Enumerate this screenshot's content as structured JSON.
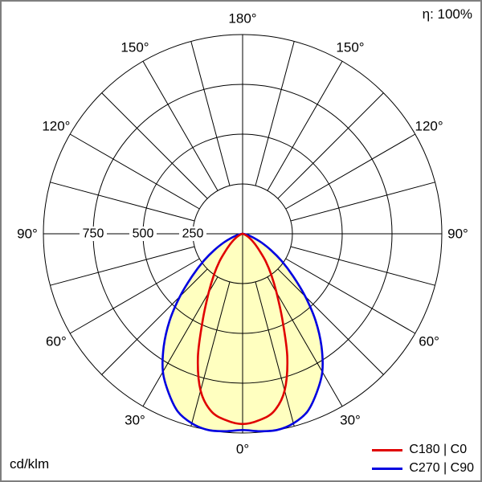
{
  "meta": {
    "efficiency": "η: 100%",
    "unit": "cd/klm"
  },
  "legend": [
    {
      "label": "C180 | C0",
      "color": "#e00000"
    },
    {
      "label": "C270 | C90",
      "color": "#0000e0"
    }
  ],
  "chart_data": {
    "type": "polar",
    "description": "Luminous intensity distribution polar diagram, values in cd/klm",
    "efficiency": "η: 100%",
    "unit": "cd/klm",
    "r_max": 1000,
    "radial_ticks": [
      250,
      500,
      750
    ],
    "grid_step_deg": 15,
    "angle_label_step_deg": 30,
    "grid_color": "#000000",
    "fill_color": "#ffffc0",
    "center": {
      "x": 300,
      "y": 289
    },
    "radius_px": 248,
    "label_radius_px": 268,
    "angle_labels": [
      {
        "deg": 0,
        "text": "0°"
      },
      {
        "deg": 30,
        "text": "30°"
      },
      {
        "deg": 60,
        "text": "60°"
      },
      {
        "deg": 90,
        "text": "90°"
      },
      {
        "deg": 120,
        "text": "120°"
      },
      {
        "deg": 150,
        "text": "150°"
      },
      {
        "deg": 180,
        "text": "180°"
      }
    ],
    "series": [
      {
        "name": "C180 | C0",
        "plane": "C0",
        "color": "#e00000",
        "points": [
          [
            0,
            955
          ],
          [
            5,
            940
          ],
          [
            10,
            905
          ],
          [
            15,
            815
          ],
          [
            20,
            655
          ],
          [
            25,
            470
          ],
          [
            30,
            340
          ],
          [
            35,
            250
          ],
          [
            40,
            180
          ],
          [
            45,
            120
          ],
          [
            50,
            82
          ],
          [
            55,
            55
          ],
          [
            60,
            35
          ],
          [
            65,
            20
          ],
          [
            70,
            10
          ],
          [
            75,
            4
          ],
          [
            80,
            2
          ],
          [
            85,
            1
          ],
          [
            90,
            0
          ]
        ]
      },
      {
        "name": "C270 | C90",
        "plane": "C90",
        "color": "#0000e0",
        "points": [
          [
            0,
            985
          ],
          [
            5,
            995
          ],
          [
            10,
            1000
          ],
          [
            15,
            985
          ],
          [
            20,
            950
          ],
          [
            25,
            880
          ],
          [
            30,
            800
          ],
          [
            35,
            690
          ],
          [
            40,
            570
          ],
          [
            45,
            445
          ],
          [
            50,
            330
          ],
          [
            55,
            240
          ],
          [
            60,
            165
          ],
          [
            65,
            105
          ],
          [
            70,
            60
          ],
          [
            75,
            30
          ],
          [
            80,
            12
          ],
          [
            85,
            4
          ],
          [
            90,
            0
          ]
        ]
      }
    ],
    "legend_position": "bottom-right"
  }
}
